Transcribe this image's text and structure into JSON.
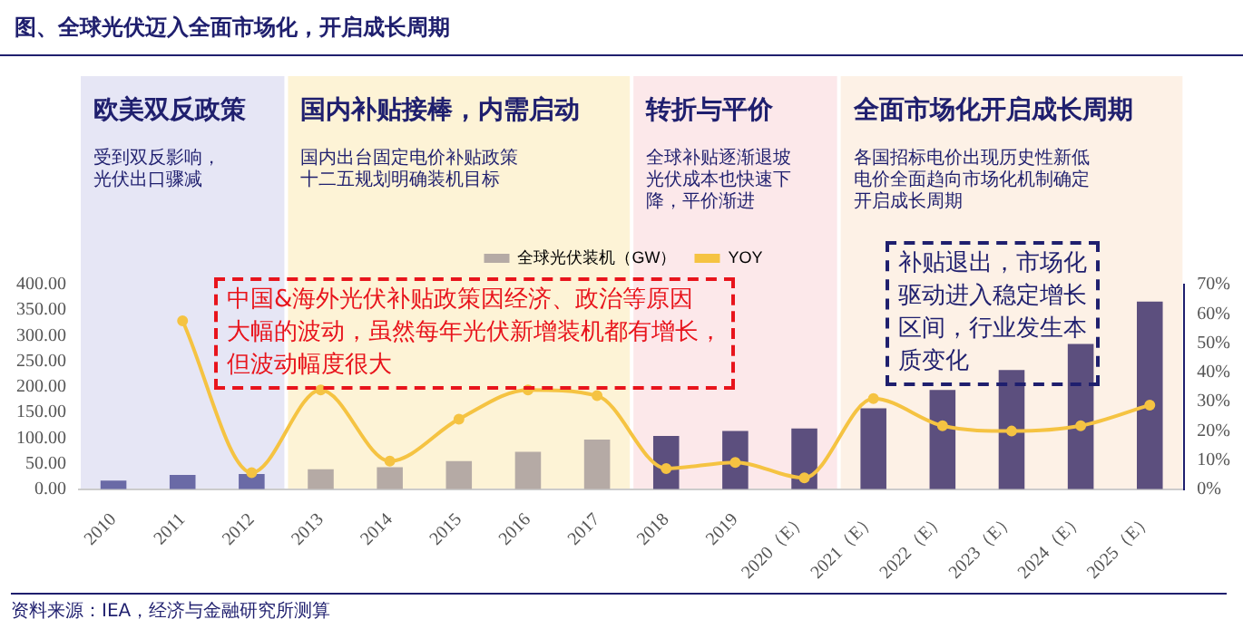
{
  "chart_data": {
    "type": "bar",
    "title": "图、全球光伏迈入全面市场化，开启成长周期",
    "categories": [
      "2010",
      "2011",
      "2012",
      "2013",
      "2014",
      "2015",
      "2016",
      "2017",
      "2018",
      "2019",
      "2020（E）",
      "2021（E）",
      "2022（E）",
      "2023（E）",
      "2024（E）",
      "2025（E）"
    ],
    "series": [
      {
        "name": "全球光伏装机（GW）",
        "color": "#b5aaa5",
        "colors": [
          "#6a6aa6",
          "#6a6aa6",
          "#6a6aa6",
          "#b5aaa5",
          "#b5aaa5",
          "#b5aaa5",
          "#b5aaa5",
          "#b5aaa5",
          "#5c4f7e",
          "#5c4f7e",
          "#5c4f7e",
          "#5c4f7e",
          "#5c4f7e",
          "#5c4f7e",
          "#5c4f7e",
          "#5c4f7e"
        ],
        "values": [
          17,
          28,
          30,
          39,
          43,
          55,
          73,
          97,
          104,
          114,
          119,
          158,
          194,
          233,
          284,
          367
        ]
      },
      {
        "name": "YOY",
        "type": "line",
        "axis": "y2",
        "color": "#f5c342",
        "values": [
          null,
          57.6,
          5.7,
          34,
          9.6,
          24,
          34,
          32,
          7.1,
          9.2,
          3.9,
          31,
          21.7,
          19.9,
          21.7,
          28.8
        ]
      }
    ],
    "ylim": [
      0,
      400
    ],
    "yticks": [
      {
        "value": 0,
        "label": "0.00"
      },
      {
        "value": 50,
        "label": "50.00"
      },
      {
        "value": 100,
        "label": "100.00"
      },
      {
        "value": 150,
        "label": "150.00"
      },
      {
        "value": 200,
        "label": "200.00"
      },
      {
        "value": 250,
        "label": "250.00"
      },
      {
        "value": 300,
        "label": "300.00"
      },
      {
        "value": 350,
        "label": "350.00"
      },
      {
        "value": 400,
        "label": "400.00"
      }
    ],
    "y2lim": [
      0,
      70
    ],
    "y2ticks": [
      {
        "value": 0,
        "label": "0%"
      },
      {
        "value": 10,
        "label": "10%"
      },
      {
        "value": 20,
        "label": "20%"
      },
      {
        "value": 30,
        "label": "30%"
      },
      {
        "value": 40,
        "label": "40%"
      },
      {
        "value": 50,
        "label": "50%"
      },
      {
        "value": 60,
        "label": "60%"
      },
      {
        "value": 70,
        "label": "70%"
      }
    ],
    "bands": [
      {
        "axis": "x",
        "from": "2010",
        "to": "2012",
        "label": "欧美双反政策",
        "color": "#e6e6f5"
      },
      {
        "axis": "x",
        "from": "2013",
        "to": "2017",
        "label": "国内补贴接棒，内需启动",
        "color": "#fdf3d6"
      },
      {
        "axis": "x",
        "from": "2018",
        "to": "2020（E）",
        "label": "转折与平价",
        "color": "#fce8ea"
      },
      {
        "axis": "x",
        "from": "2021（E）",
        "to": "2025（E）",
        "label": "全面市场化开启成长周期",
        "color": "#fdf1e6"
      }
    ],
    "annotations": [
      "受到双反影响，光伏出口骤减",
      "国内出台固定电价补贴政策十二五规划明确装机目标",
      "全球补贴逐渐退坡光伏成本也快速下降，平价渐进",
      "各国招标电价出现历史性新低电价全面趋向市场化机制确定开启成长周期",
      "中国&海外光伏补贴政策因经济、政治等原因大幅的波动，虽然每年光伏新增装机都有增长，但波动幅度很大",
      "补贴退出，市场化驱动进入稳定增长区间，行业发生本质变化",
      "资料来源：IEA，经济与金融研究所测算"
    ],
    "legend": "top",
    "grid": false,
    "marker": "circle"
  }
}
